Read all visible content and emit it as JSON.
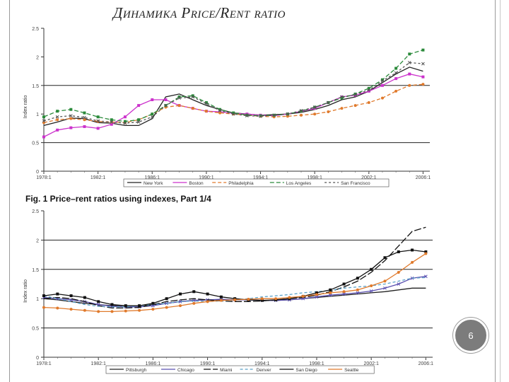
{
  "slide": {
    "title": "Динамика Price/Rent ratio",
    "figure_caption": "Fig. 1   Price–rent ratios using indexes, Part 1/4",
    "page_number": "6"
  },
  "chart_data": [
    {
      "type": "line",
      "ylabel": "Index ratio",
      "ylim": [
        0,
        2.5
      ],
      "yticks": [
        0,
        0.5,
        1,
        1.5,
        2,
        2.5
      ],
      "ytick_labels": [
        "0",
        "0.5",
        "1",
        "1.5",
        "2",
        "2.5"
      ],
      "reference_lines": [
        0.5,
        1.5
      ],
      "x": [
        1978,
        1979,
        1980,
        1981,
        1982,
        1983,
        1984,
        1985,
        1986,
        1987,
        1988,
        1989,
        1990,
        1991,
        1992,
        1993,
        1994,
        1995,
        1996,
        1997,
        1998,
        1999,
        2000,
        2001,
        2002,
        2003,
        2004,
        2005,
        2006
      ],
      "xlim": [
        1978,
        2006.5
      ],
      "xticks": [
        1978,
        1982,
        1986,
        1990,
        1994,
        1998,
        2002,
        2006
      ],
      "xtick_labels": [
        "1978:1",
        "1982:1",
        "1986:1",
        "1990:1",
        "1994:1",
        "1998:1",
        "2002:1",
        "2006:1"
      ],
      "legend_position": "bottom",
      "series": [
        {
          "name": "New York",
          "color": "#222222",
          "dash": "",
          "marker": "none",
          "values": [
            0.8,
            0.86,
            0.93,
            0.92,
            0.85,
            0.84,
            0.8,
            0.8,
            0.92,
            1.3,
            1.35,
            1.25,
            1.15,
            1.08,
            1.02,
            1.0,
            0.98,
            0.99,
            1.0,
            1.03,
            1.08,
            1.15,
            1.25,
            1.3,
            1.4,
            1.55,
            1.7,
            1.82,
            1.75
          ]
        },
        {
          "name": "Boston",
          "color": "#cc33cc",
          "dash": "",
          "marker": "square",
          "values": [
            0.6,
            0.72,
            0.76,
            0.78,
            0.75,
            0.82,
            0.95,
            1.15,
            1.25,
            1.25,
            1.15,
            1.1,
            1.05,
            1.04,
            1.01,
            1.0,
            0.98,
            0.97,
            1.0,
            1.05,
            1.1,
            1.2,
            1.3,
            1.33,
            1.4,
            1.5,
            1.62,
            1.7,
            1.65
          ]
        },
        {
          "name": "Philadelphia",
          "color": "#e07a2c",
          "dash": "5,3",
          "marker": "circle",
          "values": [
            0.85,
            0.9,
            0.92,
            0.9,
            0.87,
            0.86,
            0.85,
            0.9,
            1.0,
            1.12,
            1.15,
            1.1,
            1.05,
            1.02,
            1.0,
            0.98,
            0.96,
            0.95,
            0.96,
            0.98,
            1.0,
            1.04,
            1.1,
            1.15,
            1.2,
            1.28,
            1.4,
            1.5,
            1.52
          ]
        },
        {
          "name": "Los Angeles",
          "color": "#2a8a3a",
          "dash": "6,3",
          "marker": "square",
          "values": [
            0.95,
            1.05,
            1.08,
            1.02,
            0.95,
            0.9,
            0.87,
            0.9,
            1.0,
            1.15,
            1.3,
            1.32,
            1.2,
            1.08,
            1.02,
            0.98,
            0.97,
            0.98,
            1.0,
            1.05,
            1.12,
            1.2,
            1.28,
            1.35,
            1.45,
            1.6,
            1.8,
            2.05,
            2.12
          ]
        },
        {
          "name": "San Francisco",
          "color": "#555555",
          "dash": "3,3",
          "marker": "x",
          "values": [
            0.88,
            0.95,
            0.97,
            0.94,
            0.88,
            0.86,
            0.84,
            0.86,
            0.95,
            1.15,
            1.28,
            1.3,
            1.18,
            1.06,
            1.0,
            0.97,
            0.96,
            0.98,
            1.0,
            1.06,
            1.12,
            1.2,
            1.3,
            1.34,
            1.42,
            1.58,
            1.72,
            1.9,
            1.88
          ]
        }
      ]
    },
    {
      "type": "line",
      "ylabel": "Index ratio",
      "ylim": [
        0,
        2.5
      ],
      "yticks": [
        0,
        0.5,
        1,
        1.5,
        2,
        2.5
      ],
      "ytick_labels": [
        "0",
        "0.5",
        "1",
        "1.5",
        "2",
        "2.5"
      ],
      "reference_lines": [
        0.5,
        1.5,
        2
      ],
      "x": [
        1978,
        1979,
        1980,
        1981,
        1982,
        1983,
        1984,
        1985,
        1986,
        1987,
        1988,
        1989,
        1990,
        1991,
        1992,
        1993,
        1994,
        1995,
        1996,
        1997,
        1998,
        1999,
        2000,
        2001,
        2002,
        2003,
        2004,
        2005,
        2006
      ],
      "xlim": [
        1978,
        2006.5
      ],
      "xticks": [
        1978,
        1982,
        1986,
        1990,
        1994,
        1998,
        2002,
        2006
      ],
      "xtick_labels": [
        "1978:1",
        "1982:1",
        "1986:1",
        "1990:1",
        "1994:1",
        "1998:1",
        "2002:1",
        "2006:1"
      ],
      "legend_position": "bottom",
      "series": [
        {
          "name": "Pittsburgh",
          "color": "#222222",
          "dash": "",
          "marker": "none",
          "values": [
            1.0,
            0.98,
            0.95,
            0.92,
            0.9,
            0.88,
            0.88,
            0.88,
            0.9,
            0.92,
            0.95,
            0.97,
            0.98,
            0.98,
            0.98,
            0.98,
            0.97,
            0.97,
            0.98,
            1.0,
            1.02,
            1.04,
            1.06,
            1.08,
            1.1,
            1.12,
            1.15,
            1.18,
            1.18
          ]
        },
        {
          "name": "Chicago",
          "color": "#5a4fb0",
          "dash": "",
          "marker": "x",
          "values": [
            1.02,
            1.0,
            0.98,
            0.95,
            0.9,
            0.87,
            0.86,
            0.86,
            0.88,
            0.92,
            0.95,
            0.97,
            0.98,
            0.99,
            0.98,
            0.98,
            0.97,
            0.97,
            0.98,
            1.0,
            1.03,
            1.06,
            1.08,
            1.1,
            1.13,
            1.18,
            1.25,
            1.35,
            1.38
          ]
        },
        {
          "name": "Miami",
          "color": "#111111",
          "dash": "10,3",
          "marker": "none",
          "values": [
            1.0,
            1.02,
            1.0,
            0.95,
            0.88,
            0.84,
            0.84,
            0.85,
            0.9,
            0.95,
            0.98,
            1.0,
            0.98,
            0.96,
            0.95,
            0.95,
            0.96,
            0.98,
            1.0,
            1.02,
            1.06,
            1.12,
            1.2,
            1.3,
            1.45,
            1.65,
            1.9,
            2.15,
            2.22
          ]
        },
        {
          "name": "Denver",
          "color": "#5aa0c8",
          "dash": "4,3",
          "marker": "none",
          "values": [
            1.05,
            1.0,
            0.95,
            0.9,
            0.87,
            0.86,
            0.86,
            0.88,
            0.9,
            0.92,
            0.95,
            0.96,
            0.95,
            0.96,
            0.98,
            1.0,
            1.03,
            1.05,
            1.07,
            1.1,
            1.12,
            1.14,
            1.18,
            1.2,
            1.22,
            1.25,
            1.3,
            1.35,
            1.36
          ]
        },
        {
          "name": "San Diego",
          "color": "#111111",
          "dash": "",
          "marker": "square",
          "values": [
            1.05,
            1.08,
            1.05,
            1.02,
            0.95,
            0.9,
            0.88,
            0.88,
            0.92,
            1.0,
            1.08,
            1.12,
            1.08,
            1.03,
            1.0,
            0.98,
            0.97,
            0.98,
            1.0,
            1.04,
            1.1,
            1.15,
            1.25,
            1.35,
            1.5,
            1.7,
            1.8,
            1.83,
            1.8
          ]
        },
        {
          "name": "Seattle",
          "color": "#e07a2c",
          "dash": "",
          "marker": "circle",
          "values": [
            0.85,
            0.84,
            0.82,
            0.8,
            0.78,
            0.78,
            0.79,
            0.8,
            0.82,
            0.85,
            0.88,
            0.92,
            0.95,
            0.97,
            0.98,
            0.99,
            1.0,
            1.0,
            1.02,
            1.04,
            1.07,
            1.1,
            1.12,
            1.15,
            1.22,
            1.3,
            1.45,
            1.62,
            1.77
          ]
        }
      ]
    }
  ]
}
